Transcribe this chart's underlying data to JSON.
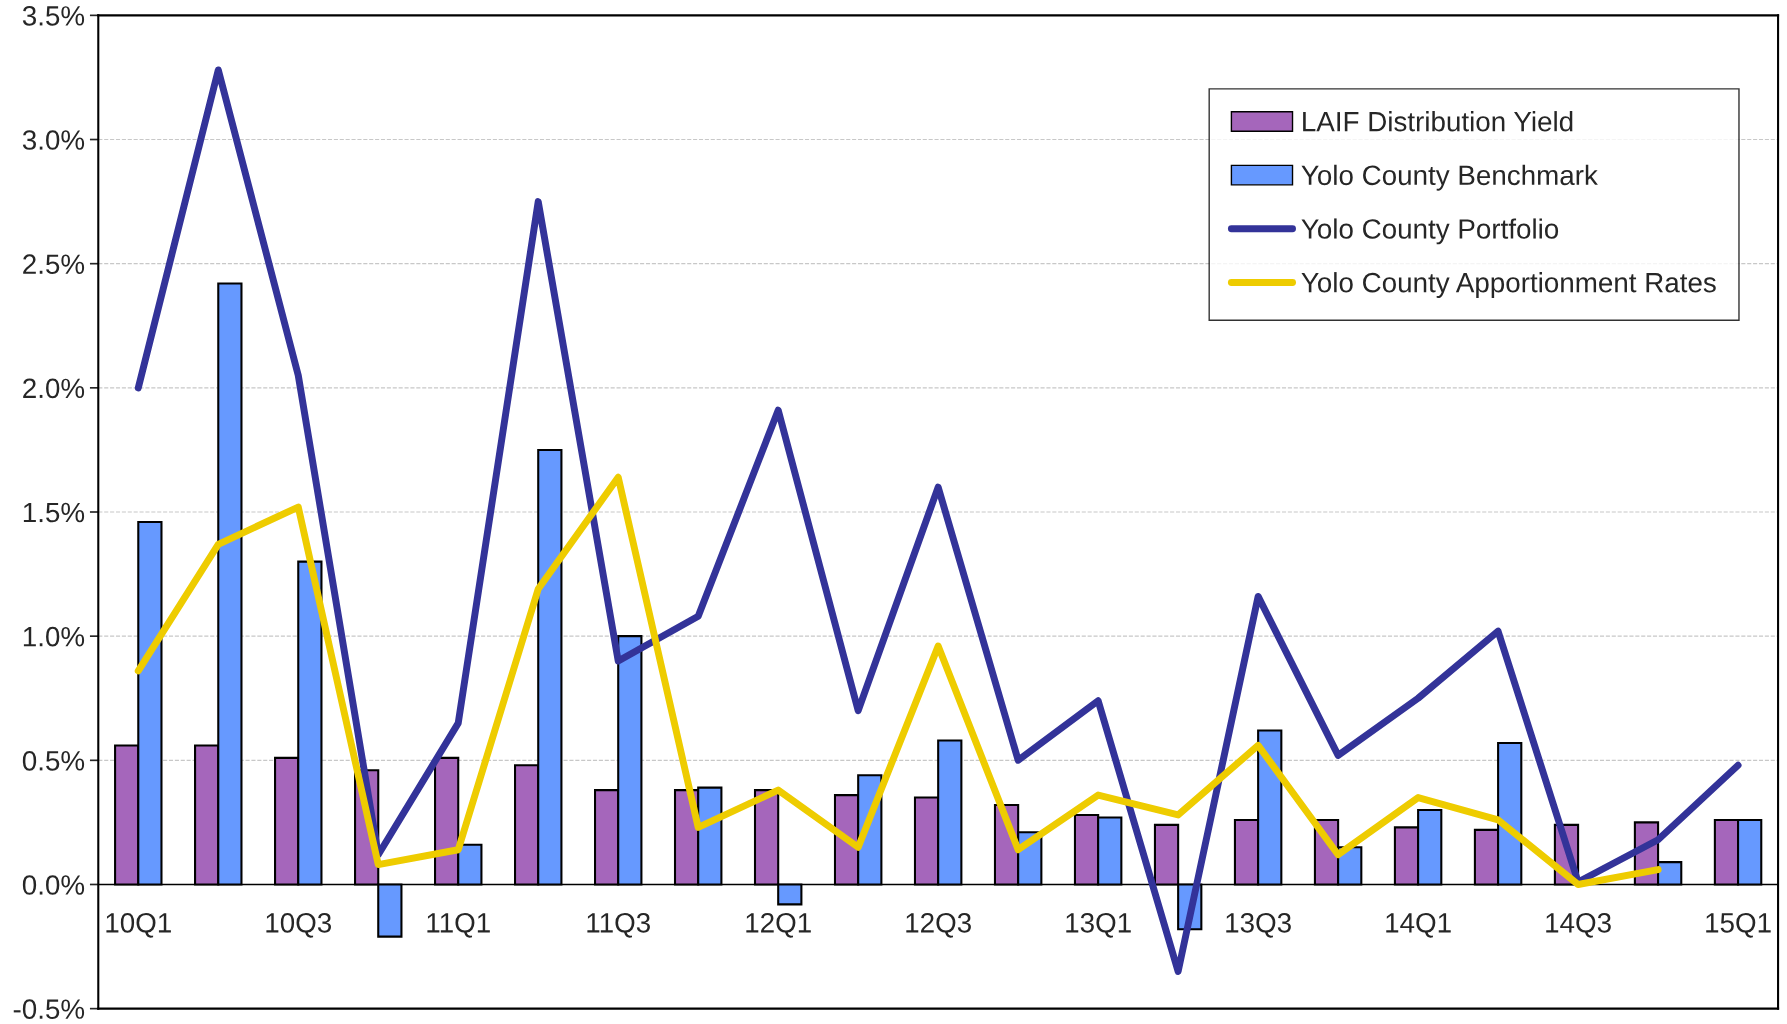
{
  "chart_data": {
    "type": "bar",
    "categories": [
      "10Q1",
      null,
      "10Q3",
      null,
      "11Q1",
      null,
      "11Q3",
      null,
      "12Q1",
      null,
      "12Q3",
      null,
      "13Q1",
      null,
      "13Q3",
      null,
      "14Q1",
      null,
      "14Q3",
      null,
      "15Q1"
    ],
    "series": [
      {
        "name": "LAIF Distribution Yield",
        "color": "#a566bb",
        "values": [
          0.56,
          0.56,
          0.51,
          0.46,
          0.51,
          0.48,
          0.38,
          0.38,
          0.38,
          0.36,
          0.35,
          0.32,
          0.28,
          0.24,
          0.26,
          0.26,
          0.23,
          0.22,
          0.24,
          0.25,
          0.26
        ]
      },
      {
        "name": "Yolo County Benchmark",
        "color": "#6699ff",
        "values": [
          1.46,
          2.42,
          1.3,
          -0.21,
          0.16,
          1.75,
          1.0,
          0.39,
          -0.08,
          0.44,
          0.58,
          0.21,
          0.27,
          -0.18,
          0.62,
          0.15,
          0.3,
          0.57,
          null,
          0.09,
          0.26
        ]
      },
      {
        "name": "Yolo County Portfolio",
        "type": "line",
        "color": "#333399",
        "values": [
          2.0,
          3.28,
          2.05,
          0.12,
          0.65,
          2.75,
          0.9,
          1.08,
          1.91,
          0.7,
          1.6,
          0.5,
          0.74,
          -0.35,
          1.16,
          0.52,
          0.75,
          1.02,
          0.01,
          0.18,
          0.48
        ]
      },
      {
        "name": "Yolo County Apportionment Rates",
        "type": "line",
        "color": "#eecc00",
        "values": [
          0.86,
          1.37,
          1.52,
          0.08,
          0.14,
          1.19,
          1.64,
          0.23,
          0.38,
          0.15,
          0.96,
          0.14,
          0.36,
          0.28,
          0.56,
          0.12,
          0.35,
          0.26,
          0.0,
          0.06,
          null
        ]
      }
    ],
    "ylim": [
      -0.5,
      3.5
    ],
    "yticks": [
      {
        "value": -0.5,
        "label": "-0.5%"
      },
      {
        "value": 0.0,
        "label": "0.0%"
      },
      {
        "value": 0.5,
        "label": "0.5%"
      },
      {
        "value": 1.0,
        "label": "1.0%"
      },
      {
        "value": 1.5,
        "label": "1.5%"
      },
      {
        "value": 2.0,
        "label": "2.0%"
      },
      {
        "value": 2.5,
        "label": "2.5%"
      },
      {
        "value": 3.0,
        "label": "3.0%"
      },
      {
        "value": 3.5,
        "label": "3.5%"
      }
    ],
    "grid": "y",
    "legend": "top right"
  }
}
